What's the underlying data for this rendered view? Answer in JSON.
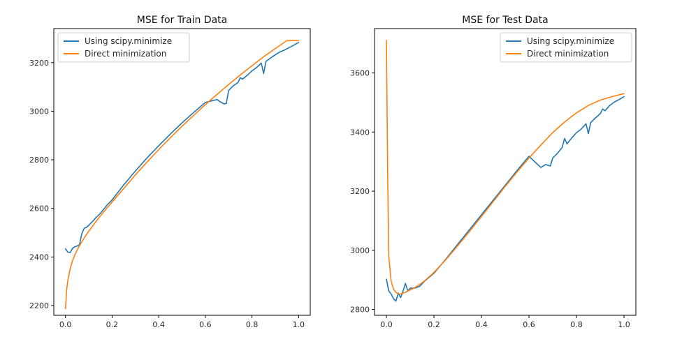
{
  "colors": {
    "scipy": "#1f77b4",
    "direct": "#ff7f0e"
  },
  "chart_data": [
    {
      "type": "line",
      "title": "MSE for Train Data",
      "xlabel": "",
      "ylabel": "",
      "xlim": [
        -0.05,
        1.05
      ],
      "ylim": [
        2160,
        3340
      ],
      "xticks": [
        0.0,
        0.2,
        0.4,
        0.6,
        0.8,
        1.0
      ],
      "xtick_labels": [
        "0.0",
        "0.2",
        "0.4",
        "0.6",
        "0.8",
        "1.0"
      ],
      "yticks": [
        2200,
        2400,
        2600,
        2800,
        3000,
        3200
      ],
      "ytick_labels": [
        "2200",
        "2400",
        "2600",
        "2800",
        "3000",
        "3200"
      ],
      "grid": false,
      "legend_position": "upper left",
      "series": [
        {
          "name": "Using scipy.minimize",
          "color": "#1f77b4",
          "x": [
            0.0,
            0.01,
            0.02,
            0.03,
            0.04,
            0.05,
            0.06,
            0.07,
            0.08,
            0.09,
            0.1,
            0.11,
            0.12,
            0.13,
            0.14,
            0.15,
            0.16,
            0.18,
            0.2,
            0.25,
            0.3,
            0.35,
            0.4,
            0.45,
            0.5,
            0.55,
            0.6,
            0.65,
            0.66,
            0.68,
            0.69,
            0.7,
            0.72,
            0.74,
            0.75,
            0.76,
            0.78,
            0.8,
            0.82,
            0.84,
            0.85,
            0.86,
            0.88,
            0.9,
            0.92,
            0.94,
            0.96,
            0.98,
            1.0
          ],
          "y": [
            2434,
            2420,
            2418,
            2435,
            2442,
            2445,
            2450,
            2495,
            2518,
            2522,
            2530,
            2540,
            2550,
            2562,
            2570,
            2580,
            2592,
            2615,
            2635,
            2697,
            2754,
            2808,
            2858,
            2906,
            2952,
            2995,
            3036,
            3048,
            3041,
            3030,
            3032,
            3085,
            3105,
            3118,
            3138,
            3132,
            3148,
            3166,
            3180,
            3198,
            3155,
            3205,
            3219,
            3232,
            3244,
            3252,
            3262,
            3272,
            3283
          ]
        },
        {
          "name": "Direct minimization",
          "color": "#ff7f0e",
          "x": [
            0.0,
            0.005,
            0.01,
            0.02,
            0.03,
            0.04,
            0.05,
            0.06,
            0.07,
            0.08,
            0.1,
            0.12,
            0.14,
            0.16,
            0.18,
            0.2,
            0.25,
            0.3,
            0.35,
            0.4,
            0.45,
            0.5,
            0.55,
            0.6,
            0.65,
            0.7,
            0.75,
            0.8,
            0.85,
            0.9,
            0.95,
            1.0
          ],
          "y": [
            2187,
            2262,
            2302,
            2352,
            2384,
            2408,
            2428,
            2446,
            2462,
            2478,
            2506,
            2532,
            2557,
            2581,
            2604,
            2626,
            2682,
            2738,
            2791,
            2842,
            2891,
            2938,
            2983,
            3027,
            3069,
            3110,
            3149,
            3187,
            3224,
            3258,
            3291,
            3291
          ]
        }
      ]
    },
    {
      "type": "line",
      "title": "MSE for Test Data",
      "xlabel": "",
      "ylabel": "",
      "xlim": [
        -0.05,
        1.05
      ],
      "ylim": [
        2780,
        3750
      ],
      "xticks": [
        0.0,
        0.2,
        0.4,
        0.6,
        0.8,
        1.0
      ],
      "xtick_labels": [
        "0.0",
        "0.2",
        "0.4",
        "0.6",
        "0.8",
        "1.0"
      ],
      "yticks": [
        2800,
        3000,
        3200,
        3400,
        3600
      ],
      "ytick_labels": [
        "2800",
        "3000",
        "3200",
        "3400",
        "3600"
      ],
      "grid": false,
      "legend_position": "upper right",
      "series": [
        {
          "name": "Using scipy.minimize",
          "color": "#1f77b4",
          "x": [
            0.0,
            0.01,
            0.02,
            0.03,
            0.04,
            0.05,
            0.06,
            0.07,
            0.08,
            0.09,
            0.1,
            0.12,
            0.14,
            0.16,
            0.2,
            0.25,
            0.3,
            0.35,
            0.4,
            0.45,
            0.5,
            0.55,
            0.6,
            0.65,
            0.67,
            0.69,
            0.7,
            0.72,
            0.74,
            0.75,
            0.76,
            0.78,
            0.8,
            0.82,
            0.84,
            0.85,
            0.86,
            0.88,
            0.9,
            0.91,
            0.92,
            0.94,
            0.96,
            0.98,
            1.0
          ],
          "y": [
            2902,
            2862,
            2852,
            2836,
            2828,
            2855,
            2840,
            2862,
            2888,
            2862,
            2872,
            2872,
            2878,
            2895,
            2922,
            2970,
            3020,
            3070,
            3120,
            3170,
            3220,
            3270,
            3318,
            3280,
            3290,
            3285,
            3312,
            3328,
            3348,
            3378,
            3360,
            3380,
            3398,
            3410,
            3428,
            3395,
            3432,
            3448,
            3462,
            3478,
            3472,
            3490,
            3502,
            3510,
            3520
          ]
        },
        {
          "name": "Direct minimization",
          "color": "#ff7f0e",
          "x": [
            0.0,
            0.005,
            0.01,
            0.02,
            0.03,
            0.04,
            0.05,
            0.06,
            0.08,
            0.1,
            0.12,
            0.14,
            0.16,
            0.2,
            0.25,
            0.3,
            0.35,
            0.4,
            0.45,
            0.5,
            0.55,
            0.6,
            0.65,
            0.7,
            0.75,
            0.8,
            0.85,
            0.9,
            0.95,
            1.0
          ],
          "y": [
            3710,
            3280,
            2980,
            2895,
            2868,
            2858,
            2852,
            2852,
            2858,
            2866,
            2874,
            2884,
            2896,
            2925,
            2968,
            3015,
            3064,
            3114,
            3165,
            3216,
            3265,
            3312,
            3356,
            3398,
            3434,
            3465,
            3490,
            3508,
            3520,
            3530
          ]
        }
      ]
    }
  ]
}
